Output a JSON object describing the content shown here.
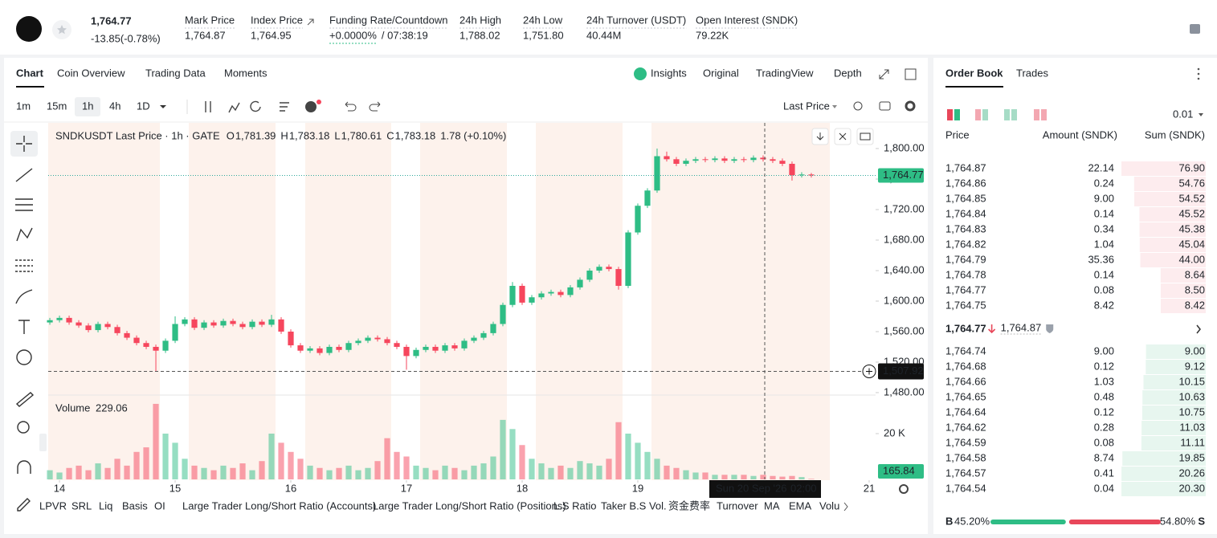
{
  "header": {
    "last_price": "1,764.77",
    "change": "-13.85(-0.78%)",
    "stats": [
      {
        "label": "Mark Price",
        "value": "1,764.87"
      },
      {
        "label": "Index Price",
        "value": "1,764.95"
      },
      {
        "label": "Funding Rate/Countdown",
        "value": "+0.0000%",
        "extra": "/ 07:38:19"
      },
      {
        "label": "24h High",
        "value": "1,788.02"
      },
      {
        "label": "24h Low",
        "value": "1,751.80"
      },
      {
        "label": "24h Turnover (USDT)",
        "value": "40.44M"
      },
      {
        "label": "Open Interest (SNDK)",
        "value": "79.22K"
      }
    ]
  },
  "chart_tabs": [
    "Chart",
    "Coin Overview",
    "Trading Data",
    "Moments"
  ],
  "view_tabs": [
    "Insights",
    "Original",
    "TradingView",
    "Depth"
  ],
  "intervals": [
    "1m",
    "15m",
    "1h",
    "4h",
    "1D"
  ],
  "price_source": "Last Price",
  "indicators": [
    "LPVR",
    "SRL",
    "Liq",
    "Basis",
    "OI",
    "Large Trader Long/Short Ratio (Accounts)",
    "Large Trader Long/Short Ratio (Positions)",
    "L.S Ratio",
    "Taker B.S Vol.",
    "资金费率",
    "Turnover",
    "MA",
    "EMA",
    "Volu"
  ],
  "chart_data": {
    "type": "candlestick",
    "legend": "SNDKUSDT Last Price · 1h · GATE",
    "ohlc_legend": [
      {
        "key": "O",
        "value": "1,781.39"
      },
      {
        "key": "H",
        "value": "1,783.18"
      },
      {
        "key": "L",
        "value": "1,780.61"
      },
      {
        "key": "C",
        "value": "1,783.18"
      }
    ],
    "legend_change": "1.78 (+0.10%)",
    "up_color": "#2ebd85",
    "down_color": "#f6465d",
    "open": [
      1572,
      1575,
      1578,
      1572,
      1568,
      1562,
      1570,
      1566,
      1558,
      1552,
      1545,
      1540,
      1535,
      1548,
      1570,
      1576,
      1565,
      1572,
      1568,
      1574,
      1570,
      1566,
      1573,
      1569,
      1576,
      1560,
      1542,
      1535,
      1538,
      1532,
      1540,
      1536,
      1545,
      1548,
      1552,
      1550,
      1545,
      1540,
      1528,
      1536,
      1540,
      1535,
      1542,
      1538,
      1548,
      1552,
      1558,
      1570,
      1595,
      1620,
      1598,
      1605,
      1610,
      1612,
      1608,
      1618,
      1628,
      1640,
      1645,
      1642,
      1620,
      1690,
      1725,
      1745,
      1790,
      1786,
      1780,
      1784,
      1786,
      1785,
      1787,
      1784,
      1786,
      1785,
      1788,
      1786,
      1784,
      1780,
      1765,
      1766
    ],
    "high": [
      1578,
      1581,
      1581,
      1575,
      1571,
      1573,
      1573,
      1569,
      1561,
      1555,
      1548,
      1543,
      1551,
      1580,
      1579,
      1579,
      1575,
      1575,
      1577,
      1577,
      1573,
      1576,
      1576,
      1582,
      1579,
      1563,
      1545,
      1541,
      1541,
      1543,
      1543,
      1548,
      1551,
      1555,
      1555,
      1553,
      1548,
      1543,
      1539,
      1543,
      1543,
      1545,
      1545,
      1551,
      1555,
      1561,
      1573,
      1598,
      1625,
      1623,
      1608,
      1613,
      1615,
      1615,
      1621,
      1631,
      1643,
      1648,
      1648,
      1645,
      1693,
      1728,
      1748,
      1800,
      1796,
      1789,
      1787,
      1789,
      1789,
      1790,
      1790,
      1789,
      1789,
      1791,
      1791,
      1789,
      1787,
      1783,
      1769,
      1768
    ],
    "low": [
      1569,
      1572,
      1569,
      1565,
      1559,
      1559,
      1563,
      1555,
      1549,
      1542,
      1537,
      1508,
      1532,
      1545,
      1567,
      1562,
      1562,
      1565,
      1565,
      1567,
      1563,
      1563,
      1566,
      1566,
      1557,
      1539,
      1532,
      1532,
      1529,
      1529,
      1533,
      1533,
      1542,
      1545,
      1547,
      1542,
      1537,
      1510,
      1525,
      1533,
      1532,
      1532,
      1535,
      1535,
      1545,
      1549,
      1555,
      1567,
      1592,
      1595,
      1595,
      1602,
      1607,
      1605,
      1605,
      1615,
      1625,
      1637,
      1639,
      1615,
      1617,
      1687,
      1722,
      1742,
      1783,
      1777,
      1777,
      1781,
      1782,
      1782,
      1781,
      1781,
      1782,
      1782,
      1783,
      1781,
      1777,
      1758,
      1762,
      1762
    ],
    "close": [
      1575,
      1578,
      1572,
      1568,
      1562,
      1570,
      1566,
      1558,
      1552,
      1545,
      1540,
      1535,
      1548,
      1570,
      1576,
      1565,
      1572,
      1568,
      1574,
      1570,
      1566,
      1573,
      1569,
      1576,
      1560,
      1542,
      1535,
      1538,
      1532,
      1540,
      1536,
      1545,
      1548,
      1552,
      1550,
      1545,
      1540,
      1528,
      1536,
      1540,
      1535,
      1542,
      1538,
      1548,
      1552,
      1558,
      1570,
      1595,
      1620,
      1598,
      1605,
      1610,
      1612,
      1608,
      1618,
      1628,
      1640,
      1645,
      1642,
      1620,
      1690,
      1725,
      1745,
      1790,
      1786,
      1780,
      1784,
      1786,
      1785,
      1787,
      1784,
      1786,
      1785,
      1788,
      1786,
      1784,
      1780,
      1765,
      1766,
      1764.77
    ],
    "xlim": [
      -0.17,
      85.67
    ],
    "xticks": [
      {
        "value": 1,
        "label": "14"
      },
      {
        "value": 13,
        "label": "15"
      },
      {
        "value": 25,
        "label": "16"
      },
      {
        "value": 37,
        "label": "17"
      },
      {
        "value": 49,
        "label": "18"
      },
      {
        "value": 61,
        "label": "19"
      },
      {
        "value": 85,
        "label": "21"
      }
    ],
    "ylim": [
      1476.8,
      1833.7
    ],
    "yticks": [
      {
        "value": 1480,
        "label": "1,480.00"
      },
      {
        "value": 1520,
        "label": "1,520.00"
      },
      {
        "value": 1560,
        "label": "1,560.00"
      },
      {
        "value": 1600,
        "label": "1,600.00"
      },
      {
        "value": 1640,
        "label": "1,640.00"
      },
      {
        "value": 1680,
        "label": "1,680.00"
      },
      {
        "value": 1720,
        "label": "1,720.00"
      },
      {
        "value": 1760,
        "label": "1,760.00"
      },
      {
        "value": 1800,
        "label": "1,800.00"
      }
    ],
    "current_price": {
      "value": 1764.77,
      "label": "1,764.77"
    },
    "crosshair": {
      "value": 1507.92,
      "label": "1,507.92",
      "date": "Sun 20 Sep '26",
      "time": "02:00"
    },
    "volume": {
      "label": "Volume",
      "legend_value": 229.06,
      "last_label": "165.84",
      "ylim": [
        0,
        36842
      ],
      "yticks": [
        {
          "value": 20000,
          "label": "20 K"
        }
      ],
      "values": [
        4000,
        3000,
        5000,
        6000,
        4000,
        7000,
        5000,
        9000,
        6000,
        12000,
        14000,
        33000,
        20000,
        16000,
        9000,
        6000,
        5000,
        4000,
        6000,
        5000,
        7000,
        4000,
        8000,
        20000,
        16000,
        12000,
        9000,
        6000,
        5000,
        4000,
        5000,
        6000,
        4000,
        5000,
        8000,
        18000,
        12000,
        10000,
        6000,
        5000,
        4000,
        6000,
        5000,
        4000,
        6000,
        7000,
        10000,
        26000,
        22000,
        15000,
        9000,
        7000,
        5000,
        6000,
        5000,
        8000,
        7000,
        6000,
        9000,
        25000,
        20000,
        16000,
        12000,
        9000,
        6000,
        5000,
        4000,
        3000,
        3000,
        2000,
        2000,
        2000,
        2000,
        1500,
        2000,
        1500,
        1200,
        1500,
        1000,
        229.06
      ]
    }
  },
  "order_book": {
    "tabs": [
      "Order Book",
      "Trades"
    ],
    "tick": "0.01",
    "columns": [
      "Price",
      "Amount (SNDK)",
      "Sum (SNDK)"
    ],
    "asks": [
      [
        "1,764.87",
        "22.14",
        "76.90"
      ],
      [
        "1,764.86",
        "0.24",
        "54.76"
      ],
      [
        "1,764.85",
        "9.00",
        "54.52"
      ],
      [
        "1,764.84",
        "0.14",
        "45.52"
      ],
      [
        "1,764.83",
        "0.34",
        "45.38"
      ],
      [
        "1,764.82",
        "1.04",
        "45.04"
      ],
      [
        "1,764.79",
        "35.36",
        "44.00"
      ],
      [
        "1,764.78",
        "0.14",
        "8.64"
      ],
      [
        "1,764.77",
        "0.08",
        "8.50"
      ],
      [
        "1,764.75",
        "8.42",
        "8.42"
      ]
    ],
    "mid_price": "1,764.77",
    "mark_price": "1,764.87",
    "bids": [
      [
        "1,764.74",
        "9.00",
        "9.00"
      ],
      [
        "1,764.68",
        "0.12",
        "9.12"
      ],
      [
        "1,764.66",
        "1.03",
        "10.15"
      ],
      [
        "1,764.65",
        "0.48",
        "10.63"
      ],
      [
        "1,764.64",
        "0.12",
        "10.75"
      ],
      [
        "1,764.62",
        "0.28",
        "11.03"
      ],
      [
        "1,764.59",
        "0.08",
        "11.11"
      ],
      [
        "1,764.58",
        "8.74",
        "19.85"
      ],
      [
        "1,764.57",
        "0.41",
        "20.26"
      ],
      [
        "1,764.54",
        "0.04",
        "20.30"
      ]
    ],
    "buy_label": "B",
    "sell_label": "S",
    "buy_ratio": {
      "value": 45.2,
      "label": "45.20%"
    },
    "sell_ratio": {
      "value": 54.8,
      "label": "54.80%"
    }
  }
}
